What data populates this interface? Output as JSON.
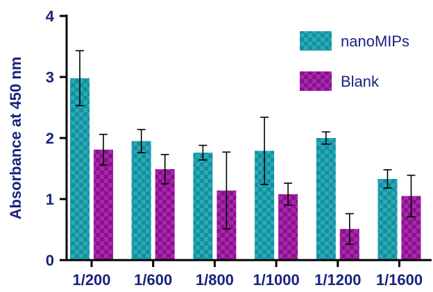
{
  "chart_data": {
    "type": "bar",
    "title": "",
    "xlabel": "",
    "ylabel": "Absorbance at 450 nm",
    "ylim": [
      0,
      4
    ],
    "yticks": [
      "0",
      "1",
      "2",
      "3",
      "4"
    ],
    "categories": [
      "1/200",
      "1/600",
      "1/800",
      "1/1000",
      "1/1200",
      "1/1600"
    ],
    "series": [
      {
        "name": "nanoMIPs",
        "values": [
          2.98,
          1.95,
          1.76,
          1.79,
          2.0,
          1.33
        ],
        "errors": [
          0.45,
          0.19,
          0.12,
          0.55,
          0.1,
          0.15
        ],
        "color": "#138f9e",
        "pattern_color": "#2aa9b7"
      },
      {
        "name": "Blank",
        "values": [
          1.81,
          1.49,
          1.14,
          1.08,
          0.51,
          1.05
        ],
        "errors": [
          0.25,
          0.24,
          0.63,
          0.18,
          0.25,
          0.34
        ],
        "color": "#8b0f8f",
        "pattern_color": "#a52aa8"
      }
    ],
    "legend_position": "top-right",
    "grid": false,
    "axis_color": "#000000",
    "text_color": "#1a237e"
  }
}
